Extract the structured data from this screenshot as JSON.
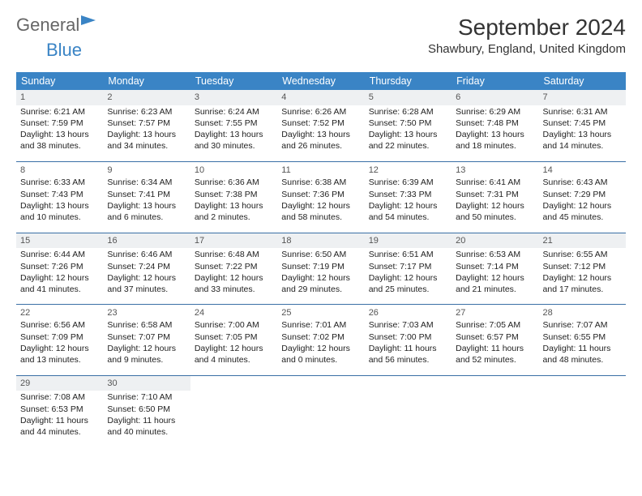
{
  "brand": {
    "part1": "General",
    "part2": "Blue"
  },
  "title": "September 2024",
  "location": "Shawbury, England, United Kingdom",
  "colors": {
    "header_bg": "#3a84c5",
    "header_text": "#ffffff",
    "row_divider": "#3a6fa5",
    "shade_bg": "#eef0f2",
    "body_text": "#222222"
  },
  "day_headers": [
    "Sunday",
    "Monday",
    "Tuesday",
    "Wednesday",
    "Thursday",
    "Friday",
    "Saturday"
  ],
  "weeks": [
    [
      {
        "n": "1",
        "sr": "6:21 AM",
        "ss": "7:59 PM",
        "dl": "13 hours and 38 minutes."
      },
      {
        "n": "2",
        "sr": "6:23 AM",
        "ss": "7:57 PM",
        "dl": "13 hours and 34 minutes."
      },
      {
        "n": "3",
        "sr": "6:24 AM",
        "ss": "7:55 PM",
        "dl": "13 hours and 30 minutes."
      },
      {
        "n": "4",
        "sr": "6:26 AM",
        "ss": "7:52 PM",
        "dl": "13 hours and 26 minutes."
      },
      {
        "n": "5",
        "sr": "6:28 AM",
        "ss": "7:50 PM",
        "dl": "13 hours and 22 minutes."
      },
      {
        "n": "6",
        "sr": "6:29 AM",
        "ss": "7:48 PM",
        "dl": "13 hours and 18 minutes."
      },
      {
        "n": "7",
        "sr": "6:31 AM",
        "ss": "7:45 PM",
        "dl": "13 hours and 14 minutes."
      }
    ],
    [
      {
        "n": "8",
        "sr": "6:33 AM",
        "ss": "7:43 PM",
        "dl": "13 hours and 10 minutes."
      },
      {
        "n": "9",
        "sr": "6:34 AM",
        "ss": "7:41 PM",
        "dl": "13 hours and 6 minutes."
      },
      {
        "n": "10",
        "sr": "6:36 AM",
        "ss": "7:38 PM",
        "dl": "13 hours and 2 minutes."
      },
      {
        "n": "11",
        "sr": "6:38 AM",
        "ss": "7:36 PM",
        "dl": "12 hours and 58 minutes."
      },
      {
        "n": "12",
        "sr": "6:39 AM",
        "ss": "7:33 PM",
        "dl": "12 hours and 54 minutes."
      },
      {
        "n": "13",
        "sr": "6:41 AM",
        "ss": "7:31 PM",
        "dl": "12 hours and 50 minutes."
      },
      {
        "n": "14",
        "sr": "6:43 AM",
        "ss": "7:29 PM",
        "dl": "12 hours and 45 minutes."
      }
    ],
    [
      {
        "n": "15",
        "sr": "6:44 AM",
        "ss": "7:26 PM",
        "dl": "12 hours and 41 minutes."
      },
      {
        "n": "16",
        "sr": "6:46 AM",
        "ss": "7:24 PM",
        "dl": "12 hours and 37 minutes."
      },
      {
        "n": "17",
        "sr": "6:48 AM",
        "ss": "7:22 PM",
        "dl": "12 hours and 33 minutes."
      },
      {
        "n": "18",
        "sr": "6:50 AM",
        "ss": "7:19 PM",
        "dl": "12 hours and 29 minutes."
      },
      {
        "n": "19",
        "sr": "6:51 AM",
        "ss": "7:17 PM",
        "dl": "12 hours and 25 minutes."
      },
      {
        "n": "20",
        "sr": "6:53 AM",
        "ss": "7:14 PM",
        "dl": "12 hours and 21 minutes."
      },
      {
        "n": "21",
        "sr": "6:55 AM",
        "ss": "7:12 PM",
        "dl": "12 hours and 17 minutes."
      }
    ],
    [
      {
        "n": "22",
        "sr": "6:56 AM",
        "ss": "7:09 PM",
        "dl": "12 hours and 13 minutes."
      },
      {
        "n": "23",
        "sr": "6:58 AM",
        "ss": "7:07 PM",
        "dl": "12 hours and 9 minutes."
      },
      {
        "n": "24",
        "sr": "7:00 AM",
        "ss": "7:05 PM",
        "dl": "12 hours and 4 minutes."
      },
      {
        "n": "25",
        "sr": "7:01 AM",
        "ss": "7:02 PM",
        "dl": "12 hours and 0 minutes."
      },
      {
        "n": "26",
        "sr": "7:03 AM",
        "ss": "7:00 PM",
        "dl": "11 hours and 56 minutes."
      },
      {
        "n": "27",
        "sr": "7:05 AM",
        "ss": "6:57 PM",
        "dl": "11 hours and 52 minutes."
      },
      {
        "n": "28",
        "sr": "7:07 AM",
        "ss": "6:55 PM",
        "dl": "11 hours and 48 minutes."
      }
    ],
    [
      {
        "n": "29",
        "sr": "7:08 AM",
        "ss": "6:53 PM",
        "dl": "11 hours and 44 minutes."
      },
      {
        "n": "30",
        "sr": "7:10 AM",
        "ss": "6:50 PM",
        "dl": "11 hours and 40 minutes."
      },
      null,
      null,
      null,
      null,
      null
    ]
  ],
  "labels": {
    "sunrise": "Sunrise: ",
    "sunset": "Sunset: ",
    "daylight": "Daylight: "
  }
}
